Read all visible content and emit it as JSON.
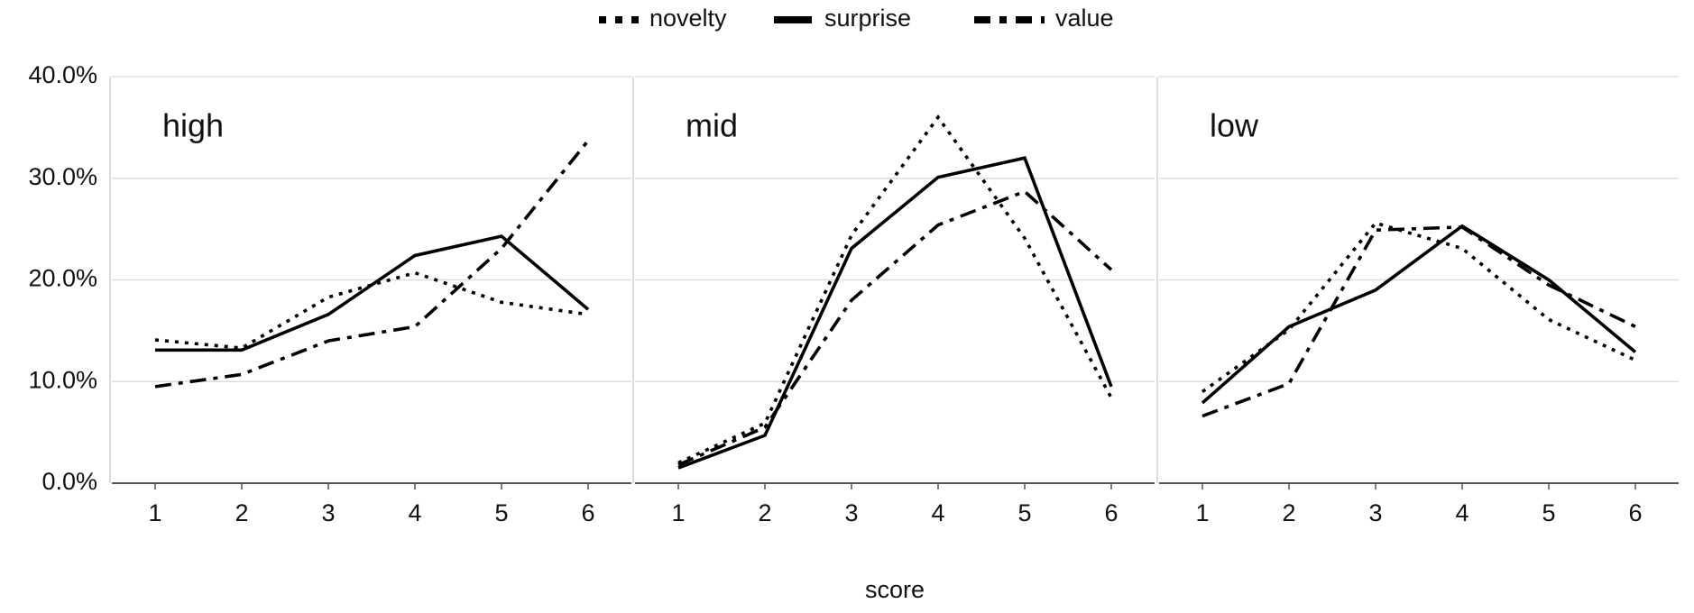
{
  "chart_data": [
    {
      "type": "line",
      "title": "high",
      "x": [
        1,
        2,
        3,
        4,
        5,
        6
      ],
      "xlim": [
        0.5,
        6.5
      ],
      "xticks": [
        1,
        2,
        3,
        4,
        5,
        6
      ],
      "ylim": [
        0,
        40
      ],
      "yticks": [
        {
          "value": 0,
          "label": "0.0%"
        },
        {
          "value": 10,
          "label": "10.0%"
        },
        {
          "value": 20,
          "label": "20.0%"
        },
        {
          "value": 30,
          "label": "30.0%"
        },
        {
          "value": 40,
          "label": "40.0%"
        }
      ],
      "grid": true,
      "series": [
        {
          "name": "novelty",
          "color": "#000000",
          "dash": "dotted",
          "values": [
            14.1,
            13.3,
            18.3,
            20.7,
            17.8,
            16.6
          ]
        },
        {
          "name": "surprise",
          "color": "#000000",
          "dash": "solid",
          "values": [
            13.1,
            13.1,
            16.6,
            22.4,
            24.3,
            17.1
          ]
        },
        {
          "name": "value",
          "color": "#000000",
          "dash": "dashdot",
          "values": [
            9.5,
            10.7,
            14.0,
            15.4,
            23.1,
            33.7
          ]
        }
      ]
    },
    {
      "type": "line",
      "title": "mid",
      "x": [
        1,
        2,
        3,
        4,
        5,
        6
      ],
      "xlim": [
        0.5,
        6.5
      ],
      "xticks": [
        1,
        2,
        3,
        4,
        5,
        6
      ],
      "xlabel": "score",
      "ylim": [
        0,
        40
      ],
      "grid": true,
      "series": [
        {
          "name": "novelty",
          "color": "#000000",
          "dash": "dotted",
          "values": [
            2.0,
            5.9,
            24.4,
            36.0,
            24.1,
            8.4
          ]
        },
        {
          "name": "surprise",
          "color": "#000000",
          "dash": "solid",
          "values": [
            1.5,
            4.7,
            23.1,
            30.1,
            32.0,
            9.5
          ]
        },
        {
          "name": "value",
          "color": "#000000",
          "dash": "dashdot",
          "values": [
            1.8,
            5.5,
            18.0,
            25.4,
            28.7,
            21.0
          ]
        }
      ]
    },
    {
      "type": "line",
      "title": "low",
      "x": [
        1,
        2,
        3,
        4,
        5,
        6
      ],
      "xlim": [
        0.5,
        6.5
      ],
      "xticks": [
        1,
        2,
        3,
        4,
        5,
        6
      ],
      "ylim": [
        0,
        40
      ],
      "grid": true,
      "series": [
        {
          "name": "novelty",
          "color": "#000000",
          "dash": "dotted",
          "values": [
            9.0,
            15.1,
            25.6,
            23.1,
            16.1,
            12.1
          ]
        },
        {
          "name": "surprise",
          "color": "#000000",
          "dash": "solid",
          "values": [
            7.9,
            15.4,
            19.0,
            25.3,
            20.0,
            12.9
          ]
        },
        {
          "name": "value",
          "color": "#000000",
          "dash": "dashdot",
          "values": [
            6.6,
            9.8,
            24.9,
            25.2,
            19.5,
            15.4
          ]
        }
      ]
    }
  ]
}
